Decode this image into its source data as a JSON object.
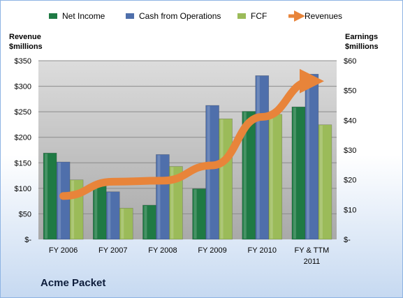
{
  "chart_data": {
    "type": "bar",
    "title": "Acme Packet",
    "categories": [
      "FY 2006",
      "FY 2007",
      "FY 2008",
      "FY 2009",
      "FY 2010",
      "FY & TTM 2011"
    ],
    "series": [
      {
        "name": "Net Income",
        "axis": "right",
        "color": "#1f7a44",
        "values": [
          29,
          19,
          11.5,
          17,
          43,
          44.5
        ]
      },
      {
        "name": "Cash from Operations",
        "axis": "right",
        "color": "#4f6fab",
        "values": [
          26,
          16,
          28.5,
          45,
          55,
          55.5
        ]
      },
      {
        "name": "FCF",
        "axis": "right",
        "color": "#9bbb59",
        "values": [
          20,
          10.5,
          24.5,
          40.5,
          42,
          38.5
        ]
      },
      {
        "name": "Revenues",
        "axis": "left",
        "type": "line",
        "color": "#e8843a",
        "values": [
          85,
          113,
          115,
          145,
          240,
          310
        ]
      }
    ],
    "left_axis": {
      "title_line1": "Revenue",
      "title_line2": "$millions",
      "min": 0,
      "max": 350,
      "ticks": [
        "$-",
        "$50",
        "$100",
        "$150",
        "$200",
        "$250",
        "$300",
        "$350"
      ]
    },
    "right_axis": {
      "title_line1": "Earnings",
      "title_line2": "$millions",
      "min": 0,
      "max": 60,
      "ticks": [
        "$-",
        "$10",
        "$20",
        "$30",
        "$40",
        "$50",
        "$60"
      ]
    },
    "legend": {
      "position": "top",
      "items": [
        "Net Income",
        "Cash from Operations",
        "FCF",
        "Revenues"
      ]
    },
    "grid": true
  }
}
